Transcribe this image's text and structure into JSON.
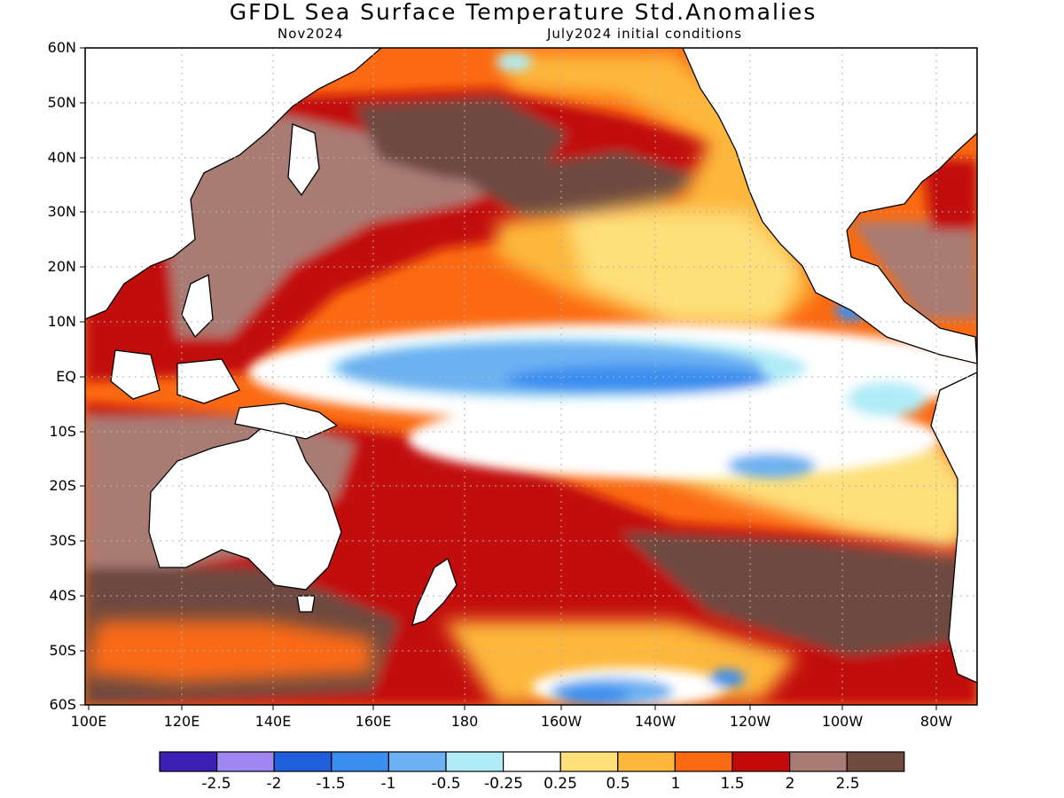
{
  "header": {
    "title": "GFDL Sea Surface Temperature Std.Anomalies",
    "target_month": "Nov2024",
    "initial_conditions": "July2024 initial conditions"
  },
  "axes": {
    "lat_labels": [
      "60N",
      "50N",
      "40N",
      "30N",
      "20N",
      "10N",
      "EQ",
      "10S",
      "20S",
      "30S",
      "40S",
      "50S",
      "60S"
    ],
    "lon_labels": [
      "100E",
      "120E",
      "140E",
      "160E",
      "180",
      "160W",
      "140W",
      "120W",
      "100W",
      "80W"
    ]
  },
  "colorbar": {
    "colors": [
      "#3c1fb4",
      "#9e87f2",
      "#1f5fdc",
      "#3a8ef0",
      "#6cb1f2",
      "#b0ecf7",
      "#ffffff",
      "#fde07a",
      "#fdb73a",
      "#fb6a12",
      "#c20a0a",
      "#a97c73",
      "#6e4a3f"
    ],
    "labels": [
      "-2.5",
      "-2",
      "-1.5",
      "-1",
      "-0.5",
      "-0.25",
      "0.25",
      "0.5",
      "1",
      "1.5",
      "2",
      "2.5"
    ]
  },
  "chart_data": {
    "type": "heatmap",
    "variable": "Sea Surface Temperature Std.Anomalies",
    "lon_range": [
      "100E",
      "70W"
    ],
    "lat_range": [
      "60S",
      "60N"
    ],
    "grid": "dotted",
    "colorbar_placement": "bottom",
    "levels": [
      -2.5,
      -2,
      -1.5,
      -1,
      -0.5,
      -0.25,
      0.25,
      0.5,
      1,
      1.5,
      2,
      2.5
    ]
  }
}
